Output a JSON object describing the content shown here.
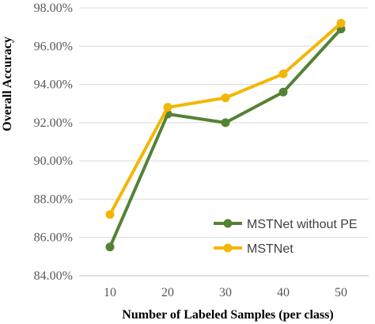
{
  "chart_data": {
    "type": "line",
    "x": [
      10,
      20,
      30,
      40,
      50
    ],
    "categories": [
      "10",
      "20",
      "30",
      "40",
      "50"
    ],
    "series": [
      {
        "name": "MSTNet without PE",
        "values": [
          85.5,
          92.45,
          92.0,
          93.6,
          96.9
        ],
        "color": "#548235"
      },
      {
        "name": "MSTNet",
        "values": [
          87.2,
          92.8,
          93.3,
          94.55,
          97.2
        ],
        "color": "#F2B705"
      }
    ],
    "title": "",
    "xlabel": "Number of Labeled Samples (per class)",
    "ylabel": "Overall Accuracy",
    "ylim": [
      84,
      98
    ],
    "yticks": [
      84,
      86,
      88,
      90,
      92,
      94,
      96,
      98
    ],
    "ytick_labels": [
      "84.00%",
      "86.00%",
      "88.00%",
      "90.00%",
      "92.00%",
      "94.00%",
      "96.00%",
      "98.00%"
    ],
    "grid": "horizontal",
    "legend_position": "bottom-right"
  }
}
